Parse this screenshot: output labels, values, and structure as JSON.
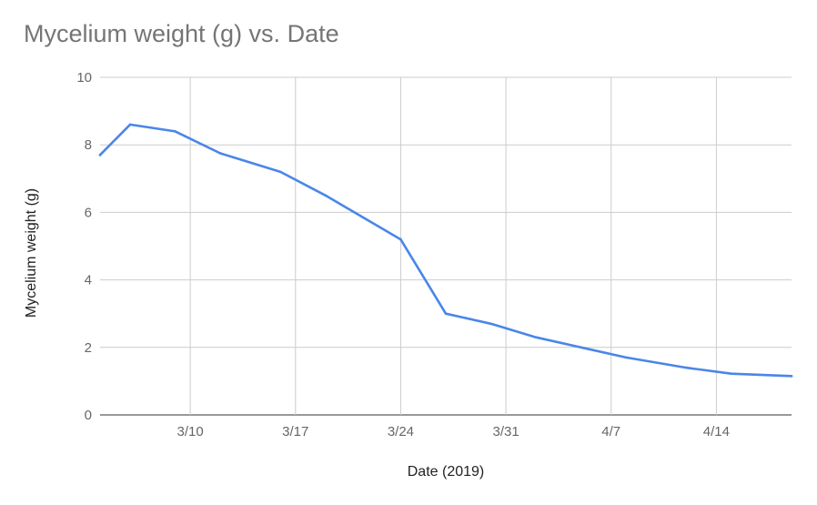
{
  "chart_data": {
    "type": "line",
    "title": "Mycelium weight (g) vs. Date",
    "xlabel": "Date (2019)",
    "ylabel": "Mycelium weight (g)",
    "ylim": [
      0,
      10
    ],
    "yticks": [
      "0",
      "2",
      "4",
      "6",
      "8",
      "10"
    ],
    "x_range": [
      "3/4",
      "4/19"
    ],
    "x_ticks": [
      {
        "date": "3/10",
        "label": "3/10"
      },
      {
        "date": "3/17",
        "label": "3/17"
      },
      {
        "date": "3/24",
        "label": "3/24"
      },
      {
        "date": "3/31",
        "label": "3/31"
      },
      {
        "date": "4/7",
        "label": "4/7"
      },
      {
        "date": "4/14",
        "label": "4/14"
      }
    ],
    "grid": true,
    "legend": "none",
    "series": [
      {
        "color": "#4a86e8",
        "points": [
          {
            "x": "3/4",
            "y": 7.7
          },
          {
            "x": "3/6",
            "y": 8.6
          },
          {
            "x": "3/9",
            "y": 8.4
          },
          {
            "x": "3/12",
            "y": 7.75
          },
          {
            "x": "3/16",
            "y": 7.2
          },
          {
            "x": "3/19",
            "y": 6.5
          },
          {
            "x": "3/24",
            "y": 5.2
          },
          {
            "x": "3/27",
            "y": 3.0
          },
          {
            "x": "3/30",
            "y": 2.7
          },
          {
            "x": "4/2",
            "y": 2.3
          },
          {
            "x": "4/5",
            "y": 2.0
          },
          {
            "x": "4/8",
            "y": 1.7
          },
          {
            "x": "4/12",
            "y": 1.4
          },
          {
            "x": "4/15",
            "y": 1.22
          },
          {
            "x": "4/19",
            "y": 1.15
          }
        ]
      }
    ]
  }
}
